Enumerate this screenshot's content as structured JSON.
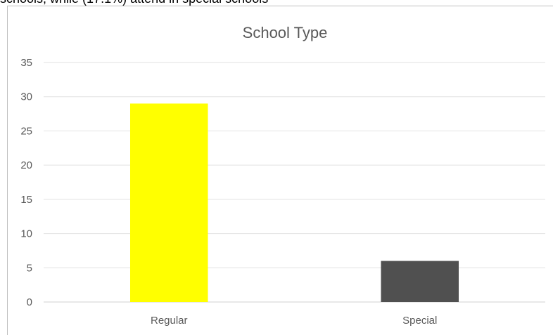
{
  "page": {
    "top_text": "schools, while (17.1%) attend in special schools"
  },
  "chart_data": {
    "type": "bar",
    "title": "School Type",
    "categories": [
      "Regular",
      "Special"
    ],
    "values": [
      29,
      6
    ],
    "bar_colors": [
      "#ffff00",
      "#505050"
    ],
    "ylim": [
      0,
      35
    ],
    "yticks": [
      0,
      5,
      10,
      15,
      20,
      25,
      30,
      35
    ],
    "grid": true,
    "legend": "none",
    "xlabel": "",
    "ylabel": ""
  }
}
